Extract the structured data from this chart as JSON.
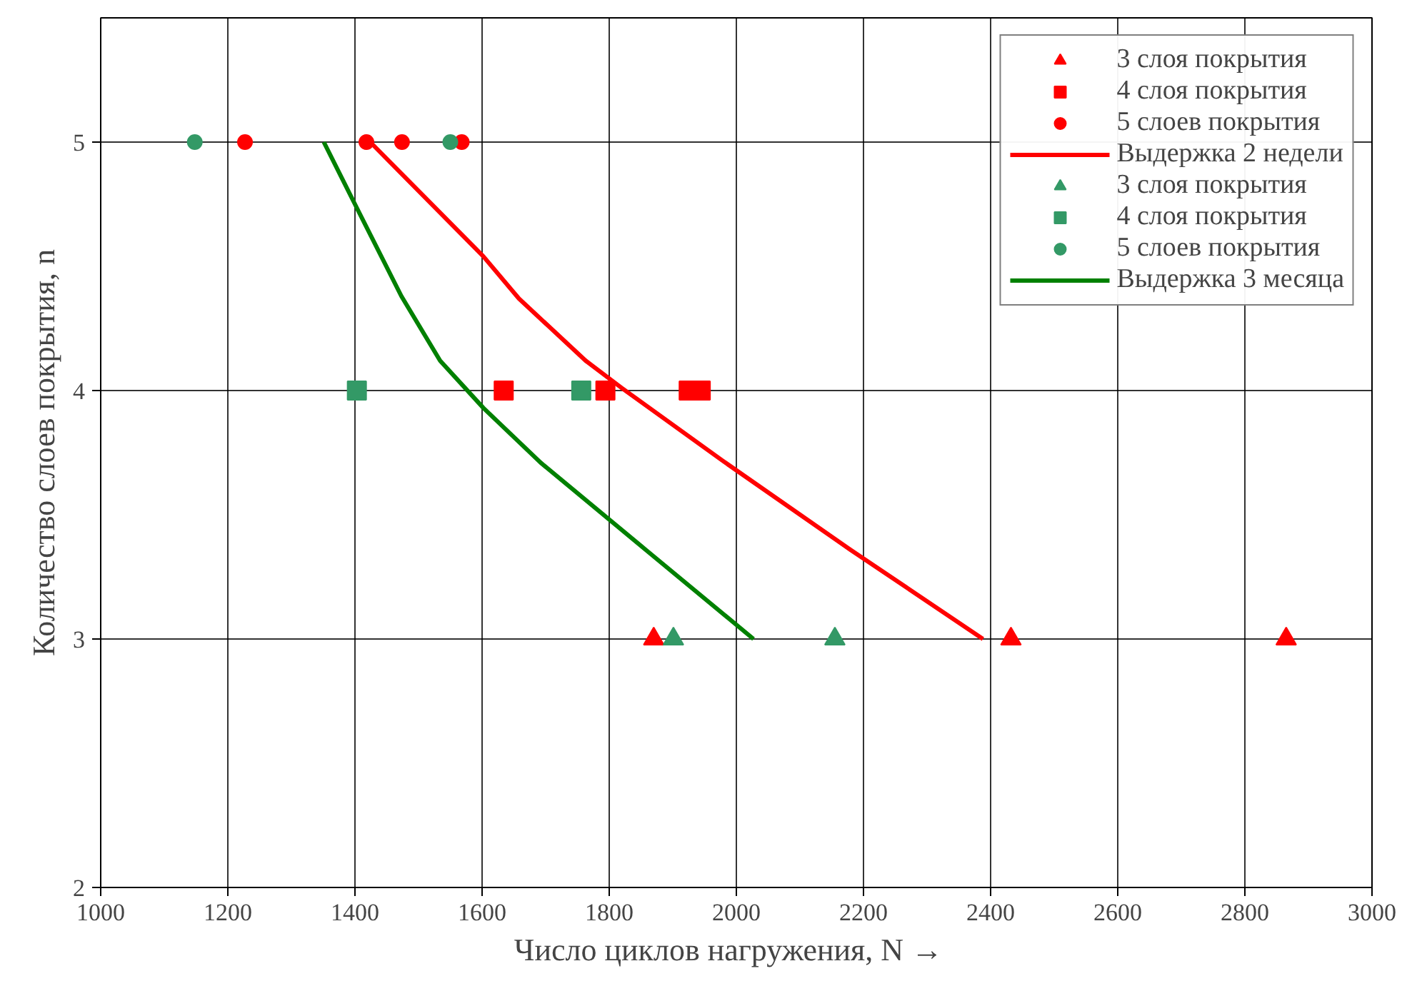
{
  "chart_data": {
    "type": "scatter",
    "xlabel": "Число циклов нагружения, N   →",
    "ylabel": "Количество слоев покрытия, n",
    "xlim": [
      1000,
      3000
    ],
    "ylim": [
      2,
      5.5
    ],
    "xticks": [
      1000,
      1200,
      1400,
      1600,
      1800,
      2000,
      2200,
      2400,
      2600,
      2800,
      3000
    ],
    "yticks": [
      2,
      3,
      4,
      5
    ],
    "grid": true,
    "legend": "top right",
    "series": [
      {
        "name": "3 слоя покрытия",
        "color": "#ff0000",
        "marker": "triangle",
        "x": [
          1870,
          2432,
          2865
        ],
        "values": [
          3,
          3,
          3
        ]
      },
      {
        "name": "4 слоя покрытия",
        "color": "#ff0000",
        "marker": "square",
        "x": [
          1634,
          1794,
          1925,
          1944
        ],
        "values": [
          4,
          4,
          4,
          4
        ]
      },
      {
        "name": "5 слоев покрытия",
        "color": "#ff0000",
        "marker": "circle",
        "x": [
          1227,
          1418,
          1474,
          1568
        ],
        "values": [
          5,
          5,
          5,
          5
        ]
      },
      {
        "name": "Выдержка 2 недели",
        "color": "#ff0000",
        "type": "line",
        "marker": "none",
        "x": [
          1424,
          1602,
          1658,
          1763,
          1820,
          1977,
          2179,
          2388
        ],
        "values": [
          5,
          4.54,
          4.37,
          4.12,
          4.01,
          3.72,
          3.36,
          3
        ]
      },
      {
        "name": "3 слоя покрытия",
        "color": "#339966",
        "marker": "triangle",
        "x": [
          1901,
          2155
        ],
        "values": [
          3,
          3
        ]
      },
      {
        "name": "4 слоя покрытия",
        "color": "#339966",
        "marker": "square",
        "x": [
          1403,
          1756
        ],
        "values": [
          4,
          4
        ]
      },
      {
        "name": "5 слоев покрытия",
        "color": "#339966",
        "marker": "circle",
        "x": [
          1148,
          1550
        ],
        "values": [
          5,
          5
        ]
      },
      {
        "name": "Выдержка 3 месяца",
        "color": "#008000",
        "type": "line",
        "marker": "none",
        "x": [
          1351,
          1398,
          1473,
          1534,
          1602,
          1692,
          1857,
          2027
        ],
        "values": [
          5,
          4.76,
          4.38,
          4.12,
          3.93,
          3.71,
          3.36,
          3
        ]
      }
    ]
  }
}
